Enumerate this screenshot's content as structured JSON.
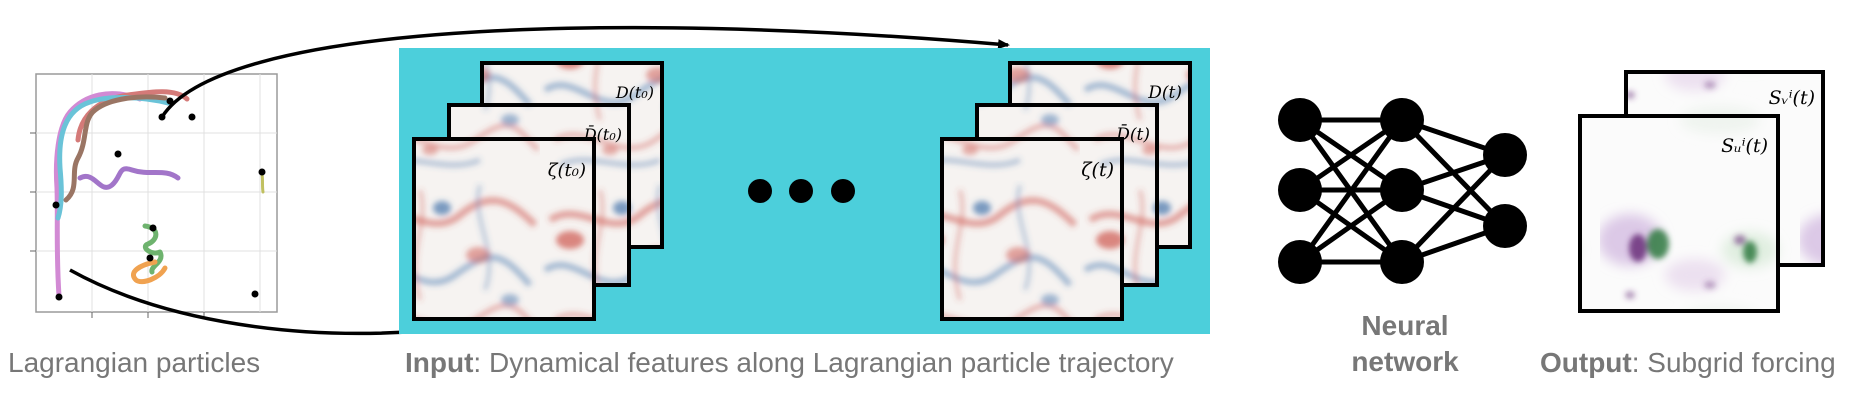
{
  "captions": {
    "particles": "Lagrangian particles",
    "input_bold": "Input",
    "input_rest": ": Dynamical features along Lagrangian particle trajectory",
    "network_line1": "Neural",
    "network_line2": "network",
    "output_bold": "Output",
    "output_rest": ": Subgrid forcing"
  },
  "frames_t0": {
    "top": "D(t₀)",
    "middle": "D̄(t₀)",
    "front": "ζ(t₀)"
  },
  "frames_t": {
    "top": "D(t)",
    "middle": "D̄(t)",
    "front": "ζ(t)"
  },
  "output_frames": {
    "back": "Sᵥⁱ(t)",
    "front": "Sᵤⁱ(t)"
  },
  "colors": {
    "panel": "#4ccfdb",
    "traj_red": "#d47a78",
    "traj_cyan": "#6ac3d8",
    "traj_brown": "#9a7564",
    "traj_purple": "#a275c9",
    "traj_pink": "#d28ad4",
    "traj_green": "#6eb36e",
    "traj_orange": "#f0a250",
    "vort_red": "#c9463d",
    "vort_blue": "#3d6fa9",
    "forcing_purple": "#6a2f7a",
    "forcing_green": "#2f7a3f"
  }
}
